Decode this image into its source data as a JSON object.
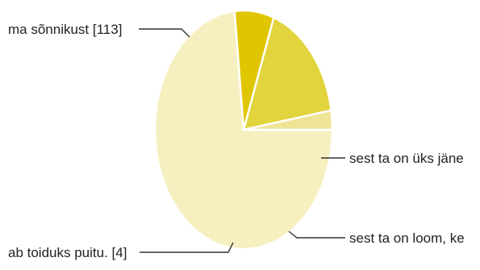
{
  "chart_data": {
    "type": "pie",
    "slices": [
      {
        "label": "ma sõnnikust [113]",
        "value": 113,
        "color": "#f6f0c0"
      },
      {
        "label": "sest ta on üks jäne",
        "value": 11,
        "color": "#e0c600"
      },
      {
        "label": "sest ta on loom, ke",
        "value": 26,
        "color": "#e2d43c"
      },
      {
        "label": "ab toiduks puitu. [4]",
        "value": 4,
        "color": "#efe396"
      }
    ]
  }
}
